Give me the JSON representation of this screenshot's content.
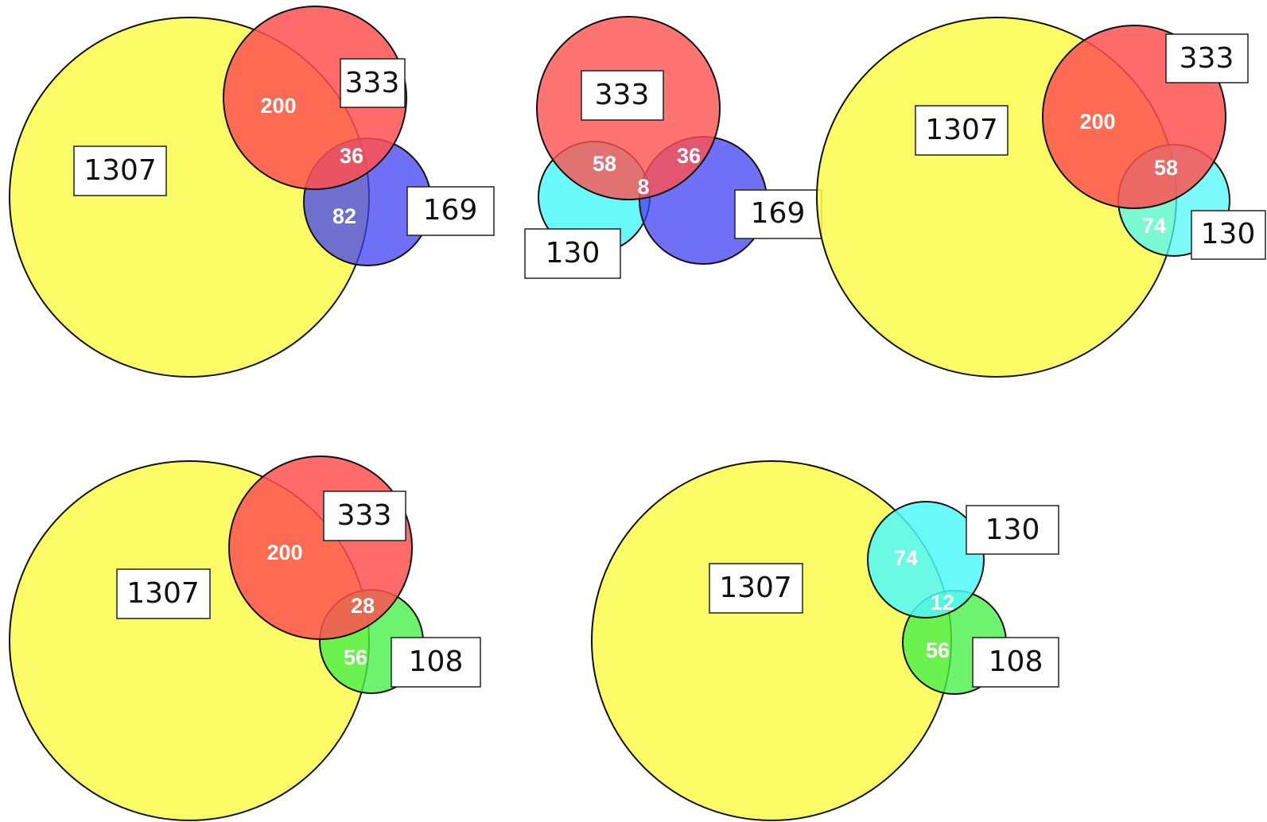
{
  "colors": {
    "yellow": "#fafa4a",
    "red": "#ff5050",
    "blue": "#4040f4",
    "cyan": "#50f8f8",
    "green": "#48f048",
    "stroke": "#111111",
    "overlap_text": "#ffffff"
  },
  "panels": {
    "p1": {
      "set_labels": [
        "1307",
        "333",
        "169"
      ],
      "overlap_labels": [
        "200",
        "36",
        "82"
      ]
    },
    "p2": {
      "set_labels": [
        "333",
        "130",
        "169"
      ],
      "overlap_labels": [
        "58",
        "36",
        "8"
      ]
    },
    "p3": {
      "set_labels": [
        "1307",
        "333",
        "130"
      ],
      "overlap_labels": [
        "200",
        "58",
        "74"
      ]
    },
    "p4": {
      "set_labels": [
        "1307",
        "333",
        "108"
      ],
      "overlap_labels": [
        "200",
        "28",
        "56"
      ]
    },
    "p5": {
      "set_labels": [
        "1307",
        "130",
        "108"
      ],
      "overlap_labels": [
        "74",
        "12",
        "56"
      ]
    }
  }
}
